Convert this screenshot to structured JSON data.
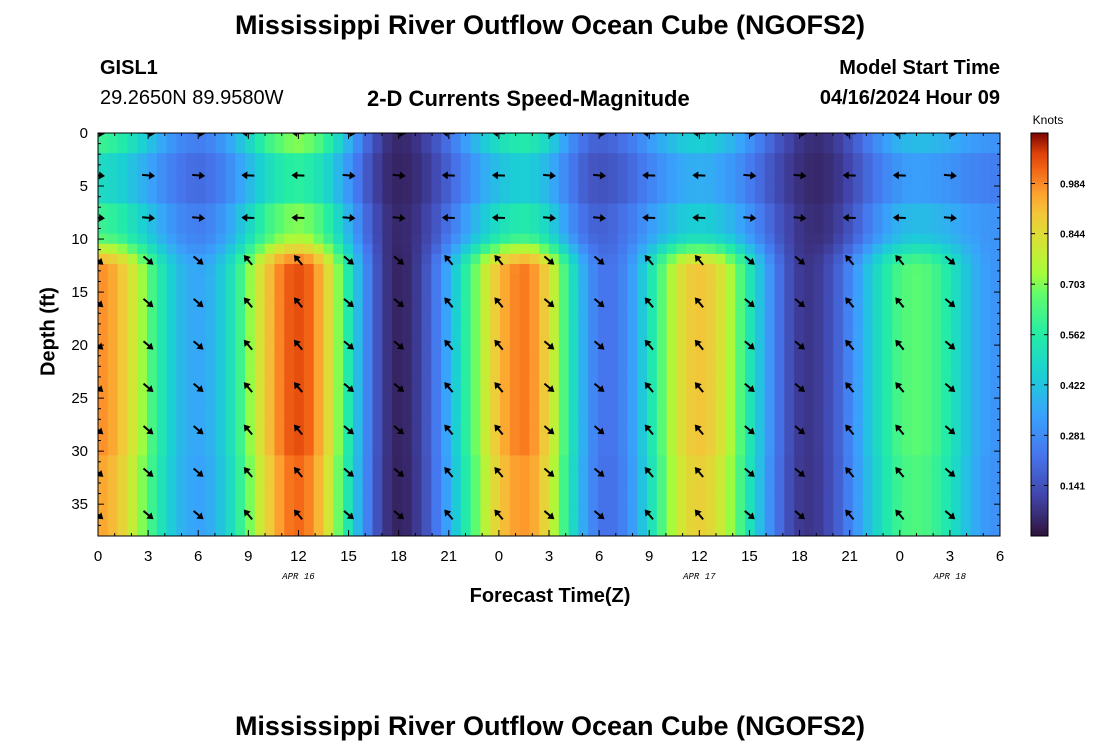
{
  "title": "Mississippi River Outflow Ocean Cube (NGOFS2)",
  "footer_title": "Mississippi River Outflow Ocean Cube (NGOFS2)",
  "station": {
    "id": "GISL1",
    "coords": "29.2650N  89.9580W"
  },
  "subtitle": "2-D Currents Speed-Magnitude",
  "model_start": {
    "label": "Model Start Time",
    "value": "04/16/2024 Hour 09"
  },
  "chart_data": {
    "type": "heatmap",
    "xlabel": "Forecast Time(Z)",
    "ylabel": "Depth (ft)",
    "x_range_hours": [
      0,
      54
    ],
    "y_range_ft": [
      0,
      38
    ],
    "x_ticks": [
      {
        "h": 0,
        "label": "0"
      },
      {
        "h": 3,
        "label": "3"
      },
      {
        "h": 6,
        "label": "6"
      },
      {
        "h": 9,
        "label": "9"
      },
      {
        "h": 12,
        "label": "12"
      },
      {
        "h": 15,
        "label": "15"
      },
      {
        "h": 18,
        "label": "18"
      },
      {
        "h": 21,
        "label": "21"
      },
      {
        "h": 24,
        "label": "0"
      },
      {
        "h": 27,
        "label": "3"
      },
      {
        "h": 30,
        "label": "6"
      },
      {
        "h": 33,
        "label": "9"
      },
      {
        "h": 36,
        "label": "12"
      },
      {
        "h": 39,
        "label": "15"
      },
      {
        "h": 42,
        "label": "18"
      },
      {
        "h": 45,
        "label": "21"
      },
      {
        "h": 48,
        "label": "0"
      },
      {
        "h": 51,
        "label": "3"
      },
      {
        "h": 54,
        "label": "6"
      }
    ],
    "y_ticks": [
      {
        "v": 0,
        "label": "0"
      },
      {
        "v": 5,
        "label": "5"
      },
      {
        "v": 10,
        "label": "10"
      },
      {
        "v": 15,
        "label": "15"
      },
      {
        "v": 20,
        "label": "20"
      },
      {
        "v": 25,
        "label": "25"
      },
      {
        "v": 30,
        "label": "30"
      },
      {
        "v": 35,
        "label": "35"
      }
    ],
    "date_labels": [
      {
        "h": 12,
        "label": "APR 16"
      },
      {
        "h": 36,
        "label": "APR 17"
      },
      {
        "h": 51,
        "label": "APR 18"
      }
    ],
    "colorbar": {
      "title": "Knots",
      "range": [
        0.0,
        1.125
      ],
      "ticks": [
        0.984,
        0.844,
        0.703,
        0.562,
        0.422,
        0.281,
        0.141
      ],
      "tick_labels": [
        "0.984",
        "0.844",
        "0.703",
        "0.562",
        "0.422",
        "0.281",
        "0.141"
      ]
    },
    "surface_peaks_knots": [
      {
        "h": 0,
        "v": 0.6
      },
      {
        "h": 6,
        "v": 0.25
      },
      {
        "h": 12,
        "v": 0.7
      },
      {
        "h": 18,
        "v": 0.05
      },
      {
        "h": 25.5,
        "v": 0.55
      },
      {
        "h": 30,
        "v": 0.18
      },
      {
        "h": 36,
        "v": 0.45
      },
      {
        "h": 43,
        "v": 0.06
      },
      {
        "h": 49,
        "v": 0.4
      },
      {
        "h": 54,
        "v": 0.3
      }
    ],
    "deep_peaks_knots": [
      {
        "h": 0,
        "v": 0.98
      },
      {
        "h": 6,
        "v": 0.35
      },
      {
        "h": 12,
        "v": 1.05
      },
      {
        "h": 18,
        "v": 0.04
      },
      {
        "h": 25.5,
        "v": 1.0
      },
      {
        "h": 30.5,
        "v": 0.22
      },
      {
        "h": 36,
        "v": 0.9
      },
      {
        "h": 42.5,
        "v": 0.08
      },
      {
        "h": 49,
        "v": 0.66
      },
      {
        "h": 54,
        "v": 0.3
      }
    ],
    "arrow_hours": [
      0,
      3,
      6,
      9,
      12,
      15,
      18,
      21,
      24,
      27,
      30,
      33,
      36,
      39,
      42,
      45,
      48,
      51
    ],
    "arrow_depths_ft": [
      0,
      4,
      8,
      12,
      16,
      20,
      24,
      28,
      32,
      36
    ]
  }
}
